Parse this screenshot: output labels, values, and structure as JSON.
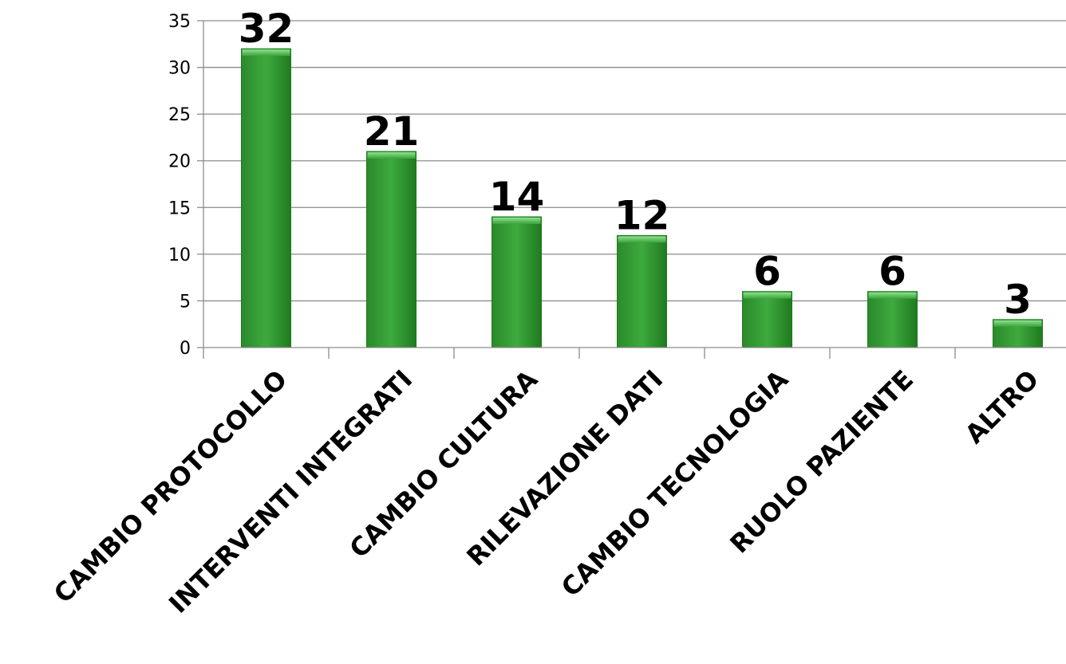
{
  "chart_data": {
    "type": "bar",
    "categories": [
      "CAMBIO PROTOCOLLO",
      "INTERVENTI INTEGRATI",
      "CAMBIO CULTURA",
      "RILEVAZIONE DATI",
      "CAMBIO TECNOLOGIA",
      "RUOLO PAZIENTE",
      "ALTRO"
    ],
    "values": [
      32,
      21,
      14,
      12,
      6,
      6,
      3
    ],
    "data_labels": [
      "32",
      "21",
      "14",
      "12",
      "6",
      "6",
      "3"
    ],
    "yticks": [
      "0",
      "5",
      "10",
      "15",
      "20",
      "25",
      "30",
      "35"
    ],
    "ylim": [
      0,
      35
    ],
    "grid": true,
    "legend": "none",
    "colors": {
      "bar": "#3aa23a",
      "bar_light": "#6fd36f",
      "bar_dark": "#1f7a1f",
      "grid": "#8c8c8c"
    }
  }
}
